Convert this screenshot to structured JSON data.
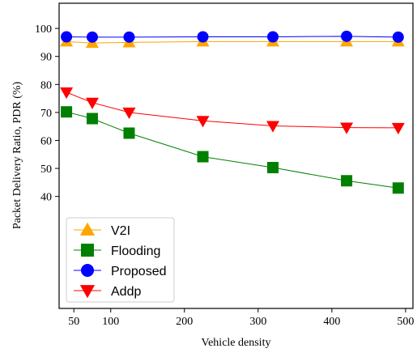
{
  "chart_data": {
    "type": "line",
    "xlabel": "Vehicle density",
    "ylabel": "Packet Delivery Ratio, PDR (%)",
    "xlim": [
      30,
      510
    ],
    "ylim": [
      0,
      109
    ],
    "xticks": [
      50,
      100,
      200,
      300,
      400,
      500
    ],
    "yticks": [
      40,
      50,
      60,
      70,
      80,
      90,
      100
    ],
    "grid": false,
    "legend_position": "bottom-left",
    "series": [
      {
        "name": "V2I",
        "color": "#FFA500",
        "marker": "triangle-up",
        "x": [
          40,
          75,
          125,
          225,
          320,
          420,
          490
        ],
        "y": [
          95.3,
          94.8,
          95.0,
          95.3,
          95.3,
          95.3,
          95.3
        ]
      },
      {
        "name": "Flooding",
        "color": "#008000",
        "marker": "square",
        "x": [
          40,
          75,
          125,
          225,
          320,
          420,
          490
        ],
        "y": [
          70.2,
          67.8,
          62.6,
          54.2,
          50.3,
          45.6,
          43.0
        ]
      },
      {
        "name": "Proposed",
        "color": "#0000FF",
        "marker": "circle",
        "x": [
          40,
          75,
          125,
          225,
          320,
          420,
          490
        ],
        "y": [
          97.0,
          96.9,
          96.9,
          97.0,
          97.0,
          97.2,
          96.9
        ]
      },
      {
        "name": "Addp",
        "color": "#FF0000",
        "marker": "triangle-down",
        "x": [
          40,
          75,
          125,
          225,
          320,
          420,
          490
        ],
        "y": [
          77.2,
          73.5,
          70.0,
          67.0,
          65.2,
          64.6,
          64.5
        ]
      }
    ]
  }
}
